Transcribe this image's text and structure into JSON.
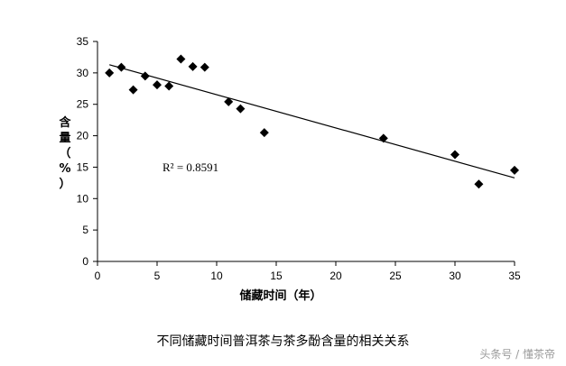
{
  "chart_data": {
    "type": "scatter",
    "x": [
      1,
      2,
      3,
      4,
      5,
      6,
      7,
      8,
      9,
      11,
      12,
      14,
      24,
      30,
      32,
      35
    ],
    "y": [
      30.0,
      30.9,
      27.3,
      29.5,
      28.1,
      27.9,
      32.2,
      31.0,
      30.9,
      25.4,
      24.3,
      20.5,
      19.6,
      17.0,
      12.3,
      14.5
    ],
    "trendline": {
      "type": "linear",
      "x": [
        1,
        35
      ],
      "y": [
        31.3,
        13.3
      ]
    },
    "annotation": "R² = 0.8591",
    "xlabel": "储藏时间（年）",
    "ylabel": "含量（%）",
    "xlim": [
      0,
      35
    ],
    "ylim": [
      0,
      35
    ],
    "xticks": [
      0,
      5,
      10,
      15,
      20,
      25,
      30,
      35
    ],
    "yticks": [
      0,
      5,
      10,
      15,
      20,
      25,
      30,
      35
    ],
    "marker": "diamond",
    "marker_color": "#000000",
    "grid": false
  },
  "caption": "不同储藏时间普洱茶与茶多酚含量的相关关系",
  "watermark": "头条号 / 懂茶帝"
}
